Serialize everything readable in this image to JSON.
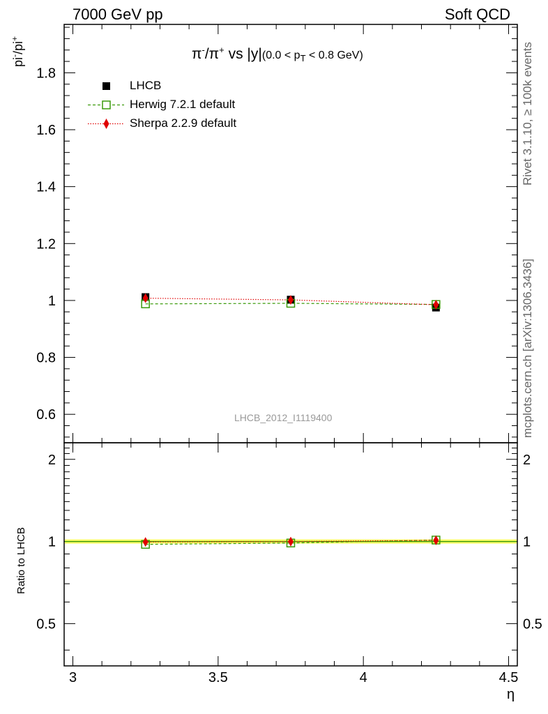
{
  "header": {
    "left": "7000 GeV pp",
    "right": "Soft QCD"
  },
  "side_labels": {
    "rivet": "Rivet 3.1.10, ≥ 100k events",
    "mcplots": "mcplots.cern.ch [arXiv:1306.3436]"
  },
  "plot_title": {
    "main_pi": "π",
    "minus": "-",
    "slash": "/π",
    "plus": "+",
    "vs": " vs |y|",
    "range_a": "(0.0 < p",
    "range_sub": "T",
    "range_b": " < 0.8 GeV)"
  },
  "watermark": "LHCB_2012_I1119400",
  "ylabel_main": {
    "base": "pi",
    "sup1": "-",
    "mid": "/pi",
    "sup2": "+"
  },
  "ylabel_ratio": "Ratio to LHCB",
  "xlabel": "η",
  "legend": [
    {
      "label": "LHCB",
      "color": "#000000",
      "marker": "square-filled"
    },
    {
      "label": "Herwig 7.2.1 default",
      "color": "#3a9a0a",
      "marker": "square-open"
    },
    {
      "label": "Sherpa 2.2.9 default",
      "color": "#e00000",
      "marker": "diamond"
    }
  ],
  "chart_data": {
    "type": "line",
    "x": [
      3.25,
      3.75,
      4.25
    ],
    "xlim": [
      2.97,
      4.53
    ],
    "xticks": [
      "3",
      "3.5",
      "4",
      "4.5"
    ],
    "xtick_values": [
      3,
      3.5,
      4,
      4.5
    ],
    "main": {
      "ylim": [
        0.5,
        1.97
      ],
      "yticks": [
        "0.6",
        "0.8",
        "1",
        "1.2",
        "1.4",
        "1.6",
        "1.8"
      ],
      "ytick_values": [
        0.6,
        0.8,
        1.0,
        1.2,
        1.4,
        1.6,
        1.8
      ],
      "series": [
        {
          "name": "LHCB",
          "values": [
            1.012,
            1.003,
            0.975
          ]
        },
        {
          "name": "Herwig 7.2.1 default",
          "values": [
            0.988,
            0.99,
            0.986
          ]
        },
        {
          "name": "Sherpa 2.2.9 default",
          "values": [
            1.008,
            1.002,
            0.985
          ]
        }
      ]
    },
    "ratio": {
      "ylim": [
        0.35,
        2.3
      ],
      "yticks": [
        "0.5",
        "1",
        "2"
      ],
      "ytick_values": [
        0.5,
        1,
        2
      ],
      "series": [
        {
          "name": "Herwig 7.2.1 default",
          "values": [
            0.976,
            0.987,
            1.012
          ]
        },
        {
          "name": "Sherpa 2.2.9 default",
          "values": [
            0.996,
            0.999,
            1.01
          ]
        }
      ]
    }
  }
}
